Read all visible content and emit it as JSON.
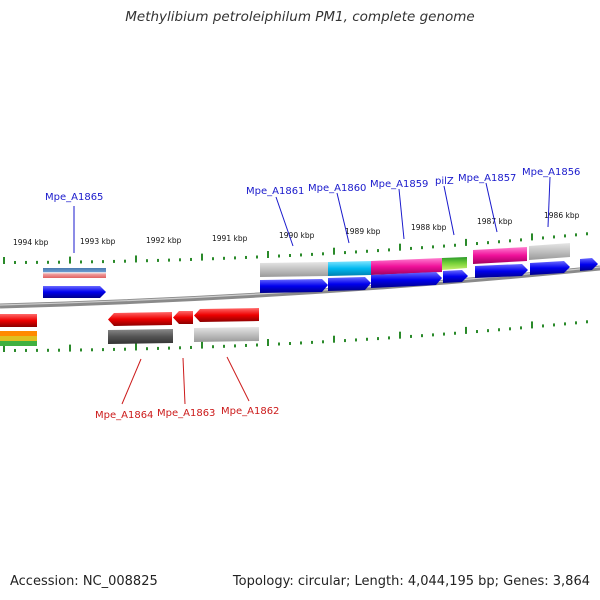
{
  "title": "Methylibium petroleiphilum PM1, complete genome",
  "footer": {
    "accession": "Accession: NC_008825",
    "stats": "Topology: circular; Length: 4,044,195 bp; Genes: 3,864"
  },
  "ticks": [
    {
      "label": "1994 kbp",
      "kind": "scale"
    },
    {
      "label": "1993 kbp",
      "kind": "scale"
    },
    {
      "label": "1992 kbp",
      "kind": "scale"
    },
    {
      "label": "1991 kbp",
      "kind": "scale"
    },
    {
      "label": "1990 kbp",
      "kind": "scale"
    },
    {
      "label": "1989 kbp",
      "kind": "scale"
    },
    {
      "label": "1988 kbp",
      "kind": "scale"
    },
    {
      "label": "1987 kbp",
      "kind": "scale"
    },
    {
      "label": "1986 kbp",
      "kind": "scale"
    }
  ],
  "genes_top": [
    {
      "label": "Mpe_A1865",
      "strand": "+"
    },
    {
      "label": "Mpe_A1861",
      "strand": "+"
    },
    {
      "label": "Mpe_A1860",
      "strand": "+"
    },
    {
      "label": "Mpe_A1859",
      "strand": "+"
    },
    {
      "label": "pilZ",
      "strand": "+"
    },
    {
      "label": "Mpe_A1857",
      "strand": "+"
    },
    {
      "label": "Mpe_A1856",
      "strand": "+"
    }
  ],
  "genes_bottom": [
    {
      "label": "Mpe_A1864",
      "strand": "-"
    },
    {
      "label": "Mpe_A1863",
      "strand": "-"
    },
    {
      "label": "Mpe_A1862",
      "strand": "-"
    }
  ],
  "colors": {
    "forward_label": "#1a1acc",
    "reverse_label": "#cc1a1a",
    "forward_gene": "#0000ee",
    "reverse_gene": "#ee0000",
    "tick": "#2a8a2a",
    "backbone": "#8a8a8a"
  }
}
